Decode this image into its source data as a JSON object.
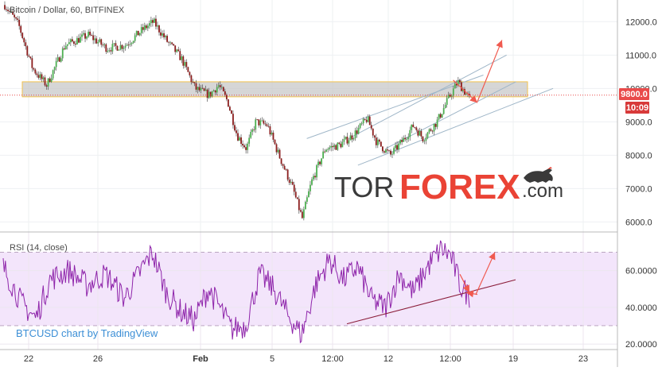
{
  "chart_data": [
    {
      "type": "candlestick",
      "title": "Bitcoin / Dollar, 60, BITFINEX",
      "y_ticks": [
        "12000.0",
        "11000.0",
        "10000.0",
        "9000.0",
        "8000.0",
        "7000.0",
        "6000.0"
      ],
      "y_tick_values": [
        12000,
        11000,
        10000,
        9000,
        8000,
        7000,
        6000
      ],
      "ylim": [
        5700,
        12650
      ],
      "price_badge": "9800.0",
      "time_badge": "10:09",
      "current_price": 9800,
      "resistance_zone": [
        9750,
        10200
      ],
      "path_points": [
        {
          "t": 0,
          "p": 12500
        },
        {
          "t": 0.03,
          "p": 11900
        },
        {
          "t": 0.06,
          "p": 10600
        },
        {
          "t": 0.09,
          "p": 10100
        },
        {
          "t": 0.13,
          "p": 11300
        },
        {
          "t": 0.18,
          "p": 11600
        },
        {
          "t": 0.22,
          "p": 11200
        },
        {
          "t": 0.26,
          "p": 11300
        },
        {
          "t": 0.3,
          "p": 11800
        },
        {
          "t": 0.32,
          "p": 12000
        },
        {
          "t": 0.35,
          "p": 11400
        },
        {
          "t": 0.38,
          "p": 10900
        },
        {
          "t": 0.41,
          "p": 10000
        },
        {
          "t": 0.44,
          "p": 9800
        },
        {
          "t": 0.46,
          "p": 10100
        },
        {
          "t": 0.48,
          "p": 9600
        },
        {
          "t": 0.5,
          "p": 8600
        },
        {
          "t": 0.52,
          "p": 8200
        },
        {
          "t": 0.54,
          "p": 9000
        },
        {
          "t": 0.565,
          "p": 8900
        },
        {
          "t": 0.59,
          "p": 8000
        },
        {
          "t": 0.62,
          "p": 7000
        },
        {
          "t": 0.64,
          "p": 6100
        },
        {
          "t": 0.66,
          "p": 7200
        },
        {
          "t": 0.69,
          "p": 8200
        },
        {
          "t": 0.72,
          "p": 8300
        },
        {
          "t": 0.75,
          "p": 8600
        },
        {
          "t": 0.78,
          "p": 9100
        },
        {
          "t": 0.8,
          "p": 8400
        },
        {
          "t": 0.83,
          "p": 8000
        },
        {
          "t": 0.86,
          "p": 8500
        },
        {
          "t": 0.88,
          "p": 8900
        },
        {
          "t": 0.9,
          "p": 8500
        },
        {
          "t": 0.93,
          "p": 9000
        },
        {
          "t": 0.955,
          "p": 9700
        },
        {
          "t": 0.975,
          "p": 10200
        },
        {
          "t": 1.0,
          "p": 9700
        }
      ]
    },
    {
      "type": "line",
      "title": "RSI (14, close)",
      "y_ticks": [
        "60.0000",
        "40.0000",
        "20.0000"
      ],
      "y_tick_values": [
        60,
        40,
        20
      ],
      "ylim": [
        17,
        81
      ],
      "band": [
        30,
        70
      ],
      "path_points": [
        {
          "t": 0,
          "p": 62
        },
        {
          "t": 0.04,
          "p": 42
        },
        {
          "t": 0.07,
          "p": 34
        },
        {
          "t": 0.1,
          "p": 55
        },
        {
          "t": 0.14,
          "p": 60
        },
        {
          "t": 0.18,
          "p": 52
        },
        {
          "t": 0.22,
          "p": 58
        },
        {
          "t": 0.26,
          "p": 45
        },
        {
          "t": 0.3,
          "p": 62
        },
        {
          "t": 0.32,
          "p": 70
        },
        {
          "t": 0.35,
          "p": 48
        },
        {
          "t": 0.38,
          "p": 38
        },
        {
          "t": 0.41,
          "p": 33
        },
        {
          "t": 0.44,
          "p": 50
        },
        {
          "t": 0.46,
          "p": 42
        },
        {
          "t": 0.49,
          "p": 28
        },
        {
          "t": 0.52,
          "p": 30
        },
        {
          "t": 0.55,
          "p": 58
        },
        {
          "t": 0.58,
          "p": 50
        },
        {
          "t": 0.61,
          "p": 36
        },
        {
          "t": 0.64,
          "p": 25
        },
        {
          "t": 0.67,
          "p": 52
        },
        {
          "t": 0.7,
          "p": 66
        },
        {
          "t": 0.73,
          "p": 55
        },
        {
          "t": 0.76,
          "p": 62
        },
        {
          "t": 0.79,
          "p": 44
        },
        {
          "t": 0.82,
          "p": 40
        },
        {
          "t": 0.85,
          "p": 58
        },
        {
          "t": 0.88,
          "p": 48
        },
        {
          "t": 0.91,
          "p": 62
        },
        {
          "t": 0.94,
          "p": 72
        },
        {
          "t": 0.96,
          "p": 68
        },
        {
          "t": 0.98,
          "p": 52
        },
        {
          "t": 1.0,
          "p": 46
        }
      ]
    }
  ],
  "x_labels": [
    "22",
    "26",
    "Feb",
    "5",
    "12:00",
    "12",
    "12:00",
    "19",
    "23"
  ],
  "bold_x_labels": [
    "Feb"
  ],
  "watermark": {
    "tor": "TOR",
    "forex": "FOREX",
    "dot_com": ".com"
  },
  "attribution": "BTCUSD chart by TradingView",
  "colors": {
    "candle_up": "#4caf50",
    "candle_down": "#8b1d1d",
    "rsi_line": "#8e24aa",
    "rsi_band": "#f3e5fb",
    "resistance_zone": "#c8c8c8",
    "resistance_border": "#f2c14e",
    "channel": "#9fb6c8",
    "arrow": "#f05a4f",
    "price_badge": "#e94b4b",
    "time_badge": "#d83a3a",
    "watermark_dark": "#3a3a3a",
    "watermark_red": "#ea4335",
    "attribution": "#3d8fd6"
  },
  "icons": [
    "bull-icon"
  ]
}
